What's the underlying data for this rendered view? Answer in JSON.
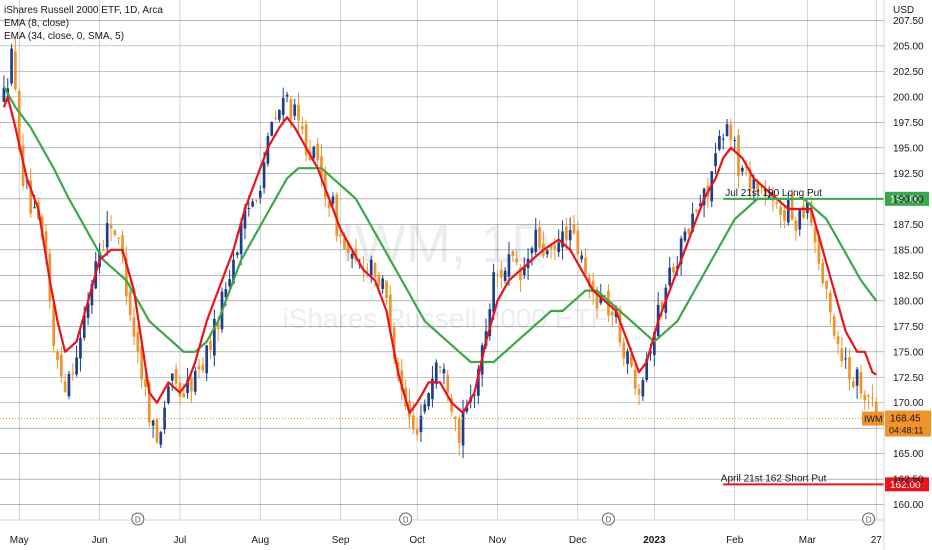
{
  "legend": {
    "line1": "iShares Russell 2000 ETF, 1D, Arca",
    "line2": "EMA (8, close)",
    "line3": "EMA (34, close, 0, SMA, 5)"
  },
  "watermark": {
    "symbol": "IWM, 1D",
    "name": "iShares Russell 2000 ETF"
  },
  "currency": "USD",
  "colors": {
    "up": "#1c3f8c",
    "down": "#f0932b",
    "ema_fast": "#e8141b",
    "ema_slow": "#3aa84a",
    "long_put": "#3aa84a",
    "short_put": "#e8141b",
    "last_price": "#f0932b"
  },
  "chart_data": {
    "type": "candlestick",
    "y_ticks": [
      "207.50",
      "205.00",
      "202.50",
      "200.00",
      "197.50",
      "195.00",
      "192.50",
      "190.00",
      "187.50",
      "185.00",
      "182.50",
      "180.00",
      "177.50",
      "175.00",
      "172.50",
      "170.00",
      "167.50",
      "165.00",
      "162.50",
      "160.00"
    ],
    "ylim": [
      158.5,
      209.5
    ],
    "x_ticks": [
      {
        "label": "May",
        "i": 4,
        "bold": false
      },
      {
        "label": "Jun",
        "i": 25,
        "bold": false
      },
      {
        "label": "Jul",
        "i": 46,
        "bold": false
      },
      {
        "label": "Aug",
        "i": 67,
        "bold": false
      },
      {
        "label": "Sep",
        "i": 88,
        "bold": false
      },
      {
        "label": "Oct",
        "i": 108,
        "bold": false
      },
      {
        "label": "Nov",
        "i": 129,
        "bold": false
      },
      {
        "label": "Dec",
        "i": 150,
        "bold": false
      },
      {
        "label": "2023",
        "i": 170,
        "bold": true
      },
      {
        "label": "Feb",
        "i": 191,
        "bold": false
      },
      {
        "label": "Mar",
        "i": 210,
        "bold": false
      },
      {
        "label": "27",
        "i": 228,
        "bold": false
      }
    ],
    "dividend_markers": [
      {
        "label": "D",
        "i": 35
      },
      {
        "label": "D",
        "i": 105
      },
      {
        "label": "D",
        "i": 158
      },
      {
        "label": "D",
        "i": 226
      }
    ],
    "anchors": [
      [
        0,
        200
      ],
      [
        2,
        204
      ],
      [
        5,
        192
      ],
      [
        8,
        188
      ],
      [
        11,
        185
      ],
      [
        13,
        175
      ],
      [
        16,
        172
      ],
      [
        20,
        176
      ],
      [
        24,
        184
      ],
      [
        28,
        188
      ],
      [
        31,
        184
      ],
      [
        34,
        177
      ],
      [
        37,
        171
      ],
      [
        40,
        166
      ],
      [
        43,
        172
      ],
      [
        47,
        171
      ],
      [
        51,
        173
      ],
      [
        55,
        177
      ],
      [
        59,
        183
      ],
      [
        63,
        188
      ],
      [
        67,
        192
      ],
      [
        70,
        197
      ],
      [
        74,
        200
      ],
      [
        77,
        197
      ],
      [
        81,
        194
      ],
      [
        84,
        191
      ],
      [
        86,
        189
      ],
      [
        88,
        186
      ],
      [
        92,
        183
      ],
      [
        96,
        184
      ],
      [
        100,
        180
      ],
      [
        104,
        171
      ],
      [
        107,
        167
      ],
      [
        110,
        170
      ],
      [
        113,
        174
      ],
      [
        116,
        172
      ],
      [
        119,
        167
      ],
      [
        122,
        170
      ],
      [
        125,
        175
      ],
      [
        128,
        182
      ],
      [
        132,
        184
      ],
      [
        135,
        182
      ],
      [
        139,
        186
      ],
      [
        143,
        184
      ],
      [
        147,
        187
      ],
      [
        150,
        185
      ],
      [
        153,
        181
      ],
      [
        157,
        180
      ],
      [
        160,
        178
      ],
      [
        163,
        174
      ],
      [
        166,
        172
      ],
      [
        169,
        176
      ],
      [
        172,
        180
      ],
      [
        175,
        184
      ],
      [
        178,
        186
      ],
      [
        181,
        189
      ],
      [
        183,
        190
      ],
      [
        186,
        194
      ],
      [
        188,
        196
      ],
      [
        190,
        197
      ],
      [
        192,
        193
      ],
      [
        195,
        192
      ],
      [
        198,
        191
      ],
      [
        201,
        189
      ],
      [
        204,
        189
      ],
      [
        207,
        188
      ],
      [
        210,
        190
      ],
      [
        212,
        186
      ],
      [
        215,
        180
      ],
      [
        218,
        176
      ],
      [
        221,
        173
      ],
      [
        224,
        172
      ],
      [
        226,
        171
      ],
      [
        228,
        168.45
      ]
    ],
    "ema8_anchors": [
      [
        0,
        199
      ],
      [
        1,
        200
      ],
      [
        3,
        197
      ],
      [
        6,
        192
      ],
      [
        9,
        189
      ],
      [
        12,
        182
      ],
      [
        14,
        178
      ],
      [
        16,
        175
      ],
      [
        19,
        176
      ],
      [
        22,
        180
      ],
      [
        25,
        184
      ],
      [
        28,
        185
      ],
      [
        31,
        185
      ],
      [
        34,
        181
      ],
      [
        36,
        176
      ],
      [
        38,
        171
      ],
      [
        40,
        170
      ],
      [
        43,
        172
      ],
      [
        46,
        171
      ],
      [
        48,
        172
      ],
      [
        50,
        174
      ],
      [
        53,
        178
      ],
      [
        56,
        181
      ],
      [
        60,
        185
      ],
      [
        63,
        189
      ],
      [
        66,
        192
      ],
      [
        69,
        195
      ],
      [
        72,
        197
      ],
      [
        74,
        198
      ],
      [
        76,
        197
      ],
      [
        79,
        195
      ],
      [
        82,
        193
      ],
      [
        85,
        190
      ],
      [
        88,
        187
      ],
      [
        91,
        185
      ],
      [
        94,
        183
      ],
      [
        97,
        182
      ],
      [
        100,
        179
      ],
      [
        103,
        173
      ],
      [
        106,
        169
      ],
      [
        108,
        170
      ],
      [
        111,
        172
      ],
      [
        114,
        172
      ],
      [
        117,
        170
      ],
      [
        120,
        169
      ],
      [
        123,
        171
      ],
      [
        126,
        176
      ],
      [
        129,
        180
      ],
      [
        132,
        182
      ],
      [
        135,
        183
      ],
      [
        138,
        184
      ],
      [
        141,
        185
      ],
      [
        145,
        186
      ],
      [
        148,
        185
      ],
      [
        151,
        183
      ],
      [
        154,
        181
      ],
      [
        157,
        180
      ],
      [
        160,
        179
      ],
      [
        163,
        176
      ],
      [
        166,
        173
      ],
      [
        168,
        174
      ],
      [
        171,
        178
      ],
      [
        174,
        181
      ],
      [
        177,
        184
      ],
      [
        180,
        187
      ],
      [
        183,
        190
      ],
      [
        186,
        192
      ],
      [
        188,
        194
      ],
      [
        190,
        195
      ],
      [
        193,
        194
      ],
      [
        196,
        192
      ],
      [
        199,
        191
      ],
      [
        202,
        190
      ],
      [
        205,
        189
      ],
      [
        208,
        189
      ],
      [
        211,
        189
      ],
      [
        214,
        185
      ],
      [
        217,
        181
      ],
      [
        220,
        177
      ],
      [
        223,
        175
      ],
      [
        225,
        175
      ],
      [
        227,
        173
      ],
      [
        229,
        172.5
      ]
    ],
    "ema34_anchors": [
      [
        0,
        201
      ],
      [
        3,
        199
      ],
      [
        7,
        197
      ],
      [
        10,
        195
      ],
      [
        13,
        193
      ],
      [
        17,
        190
      ],
      [
        20,
        188
      ],
      [
        23,
        186
      ],
      [
        26,
        184
      ],
      [
        29,
        183
      ],
      [
        32,
        182
      ],
      [
        35,
        180
      ],
      [
        38,
        178
      ],
      [
        41,
        177
      ],
      [
        44,
        176
      ],
      [
        47,
        175
      ],
      [
        50,
        175
      ],
      [
        53,
        176
      ],
      [
        56,
        178
      ],
      [
        59,
        181
      ],
      [
        62,
        184
      ],
      [
        65,
        186
      ],
      [
        68,
        188
      ],
      [
        71,
        190
      ],
      [
        74,
        192
      ],
      [
        77,
        193
      ],
      [
        80,
        193
      ],
      [
        83,
        193
      ],
      [
        86,
        192
      ],
      [
        89,
        191
      ],
      [
        92,
        190
      ],
      [
        95,
        188
      ],
      [
        98,
        186
      ],
      [
        101,
        184
      ],
      [
        104,
        182
      ],
      [
        107,
        180
      ],
      [
        110,
        178
      ],
      [
        113,
        177
      ],
      [
        116,
        176
      ],
      [
        119,
        175
      ],
      [
        122,
        174
      ],
      [
        125,
        174
      ],
      [
        128,
        174
      ],
      [
        131,
        175
      ],
      [
        134,
        176
      ],
      [
        137,
        177
      ],
      [
        140,
        178
      ],
      [
        143,
        179
      ],
      [
        146,
        179
      ],
      [
        149,
        180
      ],
      [
        152,
        181
      ],
      [
        155,
        181
      ],
      [
        158,
        180
      ],
      [
        161,
        179
      ],
      [
        164,
        178
      ],
      [
        167,
        177
      ],
      [
        170,
        176
      ],
      [
        173,
        177
      ],
      [
        176,
        178
      ],
      [
        179,
        180
      ],
      [
        182,
        182
      ],
      [
        185,
        184
      ],
      [
        188,
        186
      ],
      [
        191,
        188
      ],
      [
        194,
        189
      ],
      [
        197,
        190
      ],
      [
        200,
        190
      ],
      [
        203,
        190
      ],
      [
        206,
        190
      ],
      [
        209,
        190
      ],
      [
        212,
        189
      ],
      [
        215,
        188
      ],
      [
        218,
        186
      ],
      [
        221,
        184
      ],
      [
        224,
        182
      ],
      [
        226,
        181
      ],
      [
        228,
        180
      ]
    ],
    "levels": [
      {
        "key": "long_put",
        "price": 190.0,
        "label": "Jul 21st 190 Long Put",
        "axis_label": "190.00",
        "x_start_i": 188
      },
      {
        "key": "short_put",
        "price": 162.0,
        "label": "April 21st 162 Short Put",
        "axis_label": "162.00",
        "x_start_i": 188
      }
    ],
    "last_price": {
      "price": 168.45,
      "label": "168.45",
      "symbol": "IWM",
      "countdown": "04:48:11"
    }
  }
}
